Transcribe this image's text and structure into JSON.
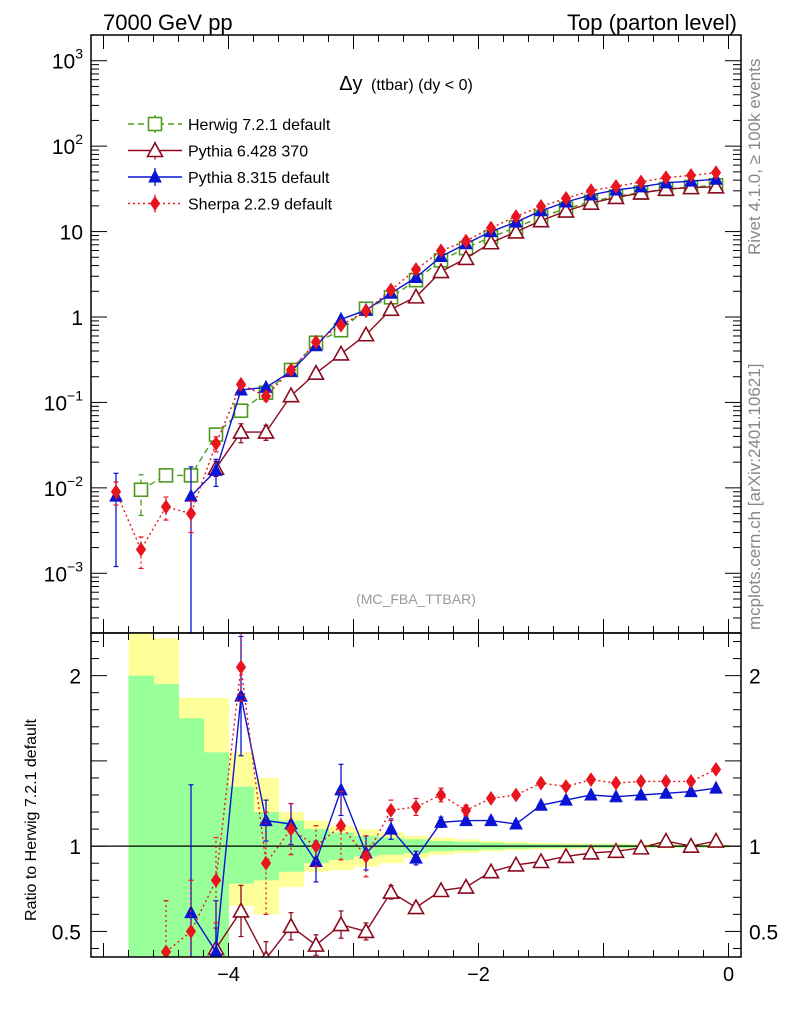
{
  "header": {
    "left": "7000 GeV pp",
    "right": "Top (parton level)"
  },
  "side_labels": {
    "rivet": "Rivet 4.1.0, ≥ 100k events",
    "mcplots": "mcplots.cern.ch [arXiv:2401.10621]"
  },
  "chart_data": {
    "type": "line",
    "title": "Δy (ttbar) (dy < 0)",
    "title_main": "Δy",
    "title_sub": "(ttbar) (dy < 0)",
    "watermark": "(MC_FBA_TTBAR)",
    "xlabel": "",
    "ylabel_main": "",
    "ylabel_ratio": "Ratio to Herwig 7.2.1 default",
    "xlim": [
      -5.1,
      0.1
    ],
    "ylim_main": [
      0.0002,
      2000
    ],
    "ylim_ratio": [
      0.35,
      2.25
    ],
    "yscale_main": "log",
    "x_ticks": [
      {
        "value": -4,
        "label": "−4"
      },
      {
        "value": -2,
        "label": "−2"
      },
      {
        "value": 0,
        "label": "0"
      }
    ],
    "y_ticks_main": [
      {
        "value": 0.001,
        "base": "10",
        "exp": "−3"
      },
      {
        "value": 0.01,
        "base": "10",
        "exp": "−2"
      },
      {
        "value": 0.1,
        "base": "10",
        "exp": "−1"
      },
      {
        "value": 1,
        "base": "1",
        "exp": ""
      },
      {
        "value": 10,
        "base": "10",
        "exp": ""
      },
      {
        "value": 100,
        "base": "10",
        "exp": "2"
      },
      {
        "value": 1000,
        "base": "10",
        "exp": "3"
      }
    ],
    "y_ticks_ratio": [
      {
        "value": 0.5,
        "label": "0.5"
      },
      {
        "value": 1,
        "label": "1"
      },
      {
        "value": 2,
        "label": "2"
      }
    ],
    "x": [
      -4.9,
      -4.7,
      -4.5,
      -4.3,
      -4.1,
      -3.9,
      -3.7,
      -3.5,
      -3.3,
      -3.1,
      -2.9,
      -2.7,
      -2.5,
      -2.3,
      -2.1,
      -1.9,
      -1.7,
      -1.5,
      -1.3,
      -1.1,
      -0.9,
      -0.7,
      -0.5,
      -0.3,
      -0.1
    ],
    "series": [
      {
        "name": "Herwig 7.2.1 default",
        "color": "#4d9a1e",
        "marker": "square-open",
        "dash": "6,4",
        "values": [
          null,
          0.0095,
          0.014,
          0.014,
          0.042,
          0.08,
          0.13,
          0.24,
          0.5,
          0.7,
          1.25,
          1.7,
          2.7,
          4.6,
          6.4,
          8.6,
          11.2,
          14.8,
          18.5,
          22.4,
          25.8,
          28.6,
          31.5,
          33.2,
          34.8
        ],
        "errors": [
          null,
          0.5,
          0.15,
          0.15,
          0.1,
          0.1,
          0.05,
          0.03,
          0.02,
          0.02,
          0.01,
          0.01,
          0.01,
          0.01,
          0.01,
          0.01,
          0.01,
          0.01,
          0.01,
          0.01,
          0.01,
          0.01,
          0.01,
          0.01,
          0.01
        ]
      },
      {
        "name": "Pythia 6.428 370",
        "color": "#8b0a1e",
        "marker": "triangle-open",
        "dash": "",
        "values": [
          null,
          null,
          null,
          null,
          0.017,
          0.045,
          0.045,
          0.12,
          0.22,
          0.37,
          0.62,
          1.23,
          1.72,
          3.4,
          4.85,
          7.4,
          9.9,
          13.4,
          17.4,
          21.5,
          25.1,
          28.3,
          31.3,
          32.7,
          33.4
        ],
        "errors": [
          null,
          null,
          null,
          null,
          0.2,
          0.25,
          0.2,
          0.12,
          0.08,
          0.06,
          0.04,
          0.03,
          0.02,
          0.02,
          0.02,
          0.01,
          0.01,
          0.01,
          0.01,
          0.01,
          0.01,
          0.01,
          0.01,
          0.01,
          0.01
        ]
      },
      {
        "name": "Pythia 8.315 default",
        "color": "#0a14d2",
        "marker": "triangle-filled",
        "dash": "",
        "values": [
          0.008,
          null,
          null,
          0.008,
          0.016,
          0.14,
          0.15,
          0.23,
          0.46,
          0.94,
          1.2,
          1.9,
          2.9,
          5.1,
          7.2,
          10.0,
          12.9,
          17.5,
          22.2,
          26.8,
          30.7,
          33.4,
          37.2,
          38.9,
          41.0
        ],
        "errors": [
          0.85,
          null,
          null,
          1.2,
          0.35,
          0.08,
          0.07,
          0.06,
          0.04,
          0.04,
          0.03,
          0.02,
          0.02,
          0.02,
          0.02,
          0.01,
          0.01,
          0.01,
          0.01,
          0.01,
          0.01,
          0.01,
          0.01,
          0.01,
          0.01
        ]
      },
      {
        "name": "Sherpa 2.2.9 default",
        "color": "#e8141e",
        "marker": "diamond-filled",
        "dash": "2,3",
        "values": [
          0.009,
          0.0019,
          0.006,
          0.005,
          0.033,
          0.163,
          0.118,
          0.24,
          0.51,
          0.8,
          1.18,
          2.07,
          3.6,
          5.96,
          7.75,
          11.0,
          15.0,
          19.7,
          24.5,
          30.1,
          33.8,
          38.1,
          42.8,
          45.5,
          48.9
        ],
        "errors": [
          0.3,
          0.4,
          0.3,
          0.4,
          0.2,
          0.1,
          0.12,
          0.07,
          0.06,
          0.05,
          0.05,
          0.03,
          0.03,
          0.02,
          0.02,
          0.02,
          0.01,
          0.01,
          0.01,
          0.01,
          0.01,
          0.01,
          0.01,
          0.01,
          0.01
        ]
      }
    ],
    "ratio_series": [
      {
        "name": "Pythia 6.428 370",
        "color": "#8b0a1e",
        "marker": "triangle-open",
        "dash": "",
        "values": [
          null,
          null,
          null,
          null,
          0.4,
          0.62,
          0.34,
          0.53,
          0.42,
          0.54,
          0.5,
          0.73,
          0.64,
          0.74,
          0.76,
          0.85,
          0.89,
          0.91,
          0.94,
          0.96,
          0.97,
          0.99,
          1.03,
          1.0,
          1.03
        ],
        "errors": [
          null,
          null,
          null,
          null,
          0.12,
          0.15,
          0.1,
          0.08,
          0.06,
          0.08,
          0.05,
          0.04,
          0.03,
          0.02,
          0.02,
          0.02,
          0.01,
          0.01,
          0.01,
          0.01,
          0.01,
          0.01,
          0.01,
          0.01,
          0.01
        ]
      },
      {
        "name": "Pythia 8.315 default",
        "color": "#0a14d2",
        "marker": "triangle-filled",
        "dash": "",
        "values": [
          null,
          null,
          null,
          0.61,
          0.38,
          1.88,
          1.15,
          1.13,
          0.91,
          1.33,
          0.96,
          1.1,
          0.93,
          1.14,
          1.15,
          1.15,
          1.13,
          1.24,
          1.27,
          1.3,
          1.29,
          1.3,
          1.31,
          1.32,
          1.34
        ],
        "errors": [
          null,
          null,
          null,
          0.75,
          0.3,
          0.35,
          0.12,
          0.12,
          0.12,
          0.15,
          0.1,
          0.06,
          0.04,
          0.03,
          0.02,
          0.02,
          0.02,
          0.01,
          0.01,
          0.01,
          0.01,
          0.01,
          0.01,
          0.01,
          0.01
        ]
      },
      {
        "name": "Sherpa 2.2.9 default",
        "color": "#e8141e",
        "marker": "diamond-filled",
        "dash": "2,3",
        "values": [
          null,
          null,
          0.38,
          0.5,
          0.8,
          2.05,
          0.9,
          1.1,
          1.0,
          1.12,
          0.94,
          1.21,
          1.23,
          1.3,
          1.21,
          1.28,
          1.3,
          1.37,
          1.35,
          1.39,
          1.37,
          1.38,
          1.38,
          1.38,
          1.45
        ],
        "errors": [
          null,
          null,
          0.3,
          0.3,
          0.25,
          0.2,
          0.3,
          0.15,
          0.12,
          0.2,
          0.12,
          0.06,
          0.05,
          0.04,
          0.03,
          0.02,
          0.02,
          0.02,
          0.02,
          0.01,
          0.01,
          0.01,
          0.01,
          0.01,
          0.01
        ]
      }
    ],
    "ratio_bands": {
      "inner_color": "#99ff99",
      "outer_color": "#ffff99",
      "inner": [
        null,
        [
          0.0,
          2.0
        ],
        [
          0.0,
          1.95
        ],
        [
          0.0,
          1.75
        ],
        [
          0.35,
          1.55
        ],
        [
          0.78,
          1.35
        ],
        [
          0.8,
          1.2
        ],
        [
          0.85,
          1.15
        ],
        [
          0.9,
          1.1
        ],
        [
          0.92,
          1.08
        ],
        [
          0.94,
          1.06
        ],
        [
          0.95,
          1.05
        ],
        [
          0.96,
          1.04
        ],
        [
          0.97,
          1.03
        ],
        [
          0.975,
          1.025
        ],
        [
          0.98,
          1.02
        ],
        [
          0.985,
          1.015
        ],
        [
          0.988,
          1.012
        ],
        [
          0.99,
          1.01
        ],
        [
          0.99,
          1.01
        ],
        [
          0.99,
          1.01
        ],
        [
          0.992,
          1.008
        ],
        [
          0.992,
          1.008
        ],
        [
          0.993,
          1.007
        ],
        [
          0.993,
          1.007
        ]
      ],
      "outer": [
        null,
        [
          0.0,
          2.25
        ],
        [
          0.0,
          2.22
        ],
        [
          0.0,
          1.87
        ],
        [
          0.0,
          1.87
        ],
        [
          0.65,
          1.55
        ],
        [
          0.6,
          1.4
        ],
        [
          0.76,
          1.2
        ],
        [
          0.85,
          1.15
        ],
        [
          0.86,
          1.12
        ],
        [
          0.88,
          1.1
        ],
        [
          0.9,
          1.08
        ],
        [
          0.93,
          1.06
        ],
        [
          0.95,
          1.05
        ],
        [
          0.96,
          1.04
        ],
        [
          0.97,
          1.03
        ],
        [
          0.975,
          1.025
        ],
        [
          0.98,
          1.02
        ],
        [
          0.982,
          1.018
        ],
        [
          0.985,
          1.015
        ],
        [
          0.985,
          1.015
        ],
        [
          0.988,
          1.012
        ],
        [
          0.988,
          1.012
        ],
        [
          0.99,
          1.01
        ],
        [
          0.99,
          1.01
        ]
      ]
    }
  }
}
